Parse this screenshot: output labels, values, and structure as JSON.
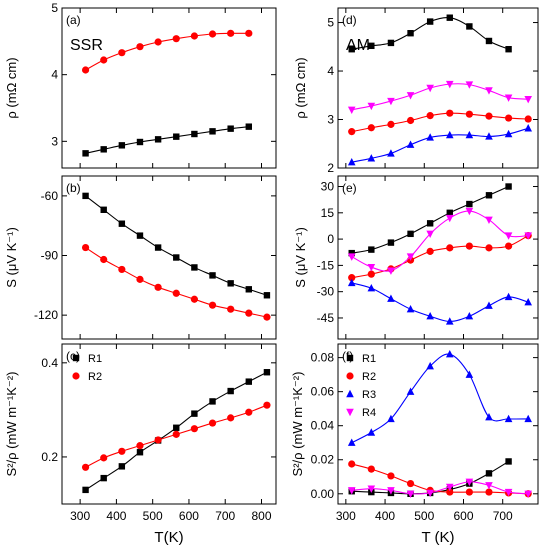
{
  "chart_data": [
    {
      "id": "a",
      "panel_label": "(a)",
      "tag": "SSR",
      "type": "line",
      "ylabel": "ρ (mΩ cm)",
      "xlim": [
        250,
        840
      ],
      "ylim": [
        2.6,
        5.0
      ],
      "yticks": [
        3,
        4,
        5
      ],
      "yticklabels": [
        "3",
        "4",
        "5"
      ],
      "series": [
        {
          "name": "R1",
          "color": "#000000",
          "marker": "square",
          "x": [
            315,
            365,
            415,
            465,
            515,
            565,
            615,
            665,
            715,
            765
          ],
          "y": [
            2.82,
            2.88,
            2.94,
            2.99,
            3.03,
            3.07,
            3.11,
            3.15,
            3.19,
            3.22
          ]
        },
        {
          "name": "R2",
          "color": "#ff0000",
          "marker": "circle",
          "x": [
            315,
            365,
            415,
            465,
            515,
            565,
            615,
            665,
            715,
            765
          ],
          "y": [
            4.07,
            4.22,
            4.33,
            4.42,
            4.49,
            4.54,
            4.58,
            4.61,
            4.62,
            4.62
          ]
        }
      ]
    },
    {
      "id": "b",
      "panel_label": "(b)",
      "type": "line",
      "ylabel": "S (μV K⁻¹)",
      "xlim": [
        250,
        840
      ],
      "ylim": [
        -132,
        -50
      ],
      "yticks": [
        -60,
        -90,
        -120
      ],
      "yticklabels": [
        "-60",
        "-90",
        "-120"
      ],
      "series": [
        {
          "name": "R1",
          "color": "#000000",
          "marker": "square",
          "x": [
            315,
            365,
            415,
            465,
            515,
            565,
            615,
            665,
            715,
            765,
            815
          ],
          "y": [
            -60,
            -67,
            -74,
            -80,
            -86,
            -91,
            -96,
            -100,
            -104,
            -107,
            -110
          ]
        },
        {
          "name": "R2",
          "color": "#ff0000",
          "marker": "circle",
          "x": [
            315,
            365,
            415,
            465,
            515,
            565,
            615,
            665,
            715,
            765,
            815
          ],
          "y": [
            -86,
            -92,
            -97,
            -102,
            -106,
            -109,
            -112,
            -115,
            -117,
            -119,
            -121
          ]
        }
      ]
    },
    {
      "id": "c",
      "panel_label": "(c)",
      "type": "line",
      "ylabel": "S²/ρ (mW m⁻¹K⁻²)",
      "xlabel": "T(K)",
      "xlim": [
        250,
        840
      ],
      "ylim": [
        0.1,
        0.44
      ],
      "xticks": [
        300,
        400,
        500,
        600,
        700,
        800
      ],
      "xticklabels": [
        "300",
        "400",
        "500",
        "600",
        "700",
        "800"
      ],
      "yticks": [
        0.2,
        0.4
      ],
      "yticklabels": [
        "0.2",
        "0.4"
      ],
      "legend_position": "top-left",
      "series": [
        {
          "name": "R1",
          "color": "#000000",
          "marker": "square",
          "x": [
            315,
            365,
            415,
            465,
            515,
            565,
            615,
            665,
            715,
            765,
            815
          ],
          "y": [
            0.13,
            0.155,
            0.18,
            0.21,
            0.235,
            0.262,
            0.292,
            0.318,
            0.34,
            0.36,
            0.38
          ]
        },
        {
          "name": "R2",
          "color": "#ff0000",
          "marker": "circle",
          "x": [
            315,
            365,
            415,
            465,
            515,
            565,
            615,
            665,
            715,
            765,
            815
          ],
          "y": [
            0.178,
            0.198,
            0.212,
            0.224,
            0.236,
            0.248,
            0.26,
            0.272,
            0.283,
            0.295,
            0.31
          ]
        }
      ]
    },
    {
      "id": "d",
      "panel_label": "(d)",
      "tag": "AM",
      "type": "line",
      "ylabel": "ρ (mΩ cm)",
      "xlim": [
        280,
        790
      ],
      "ylim": [
        2.0,
        5.3
      ],
      "yticks": [
        2,
        3,
        4,
        5
      ],
      "yticklabels": [
        "2",
        "3",
        "4",
        "5"
      ],
      "series": [
        {
          "name": "R1",
          "color": "#000000",
          "marker": "square",
          "x": [
            315,
            365,
            415,
            465,
            515,
            565,
            615,
            665,
            715
          ],
          "y": [
            4.45,
            4.52,
            4.58,
            4.78,
            5.02,
            5.1,
            4.92,
            4.62,
            4.45
          ]
        },
        {
          "name": "R2",
          "color": "#ff0000",
          "marker": "circle",
          "x": [
            315,
            365,
            415,
            465,
            515,
            565,
            615,
            665,
            715,
            765
          ],
          "y": [
            2.75,
            2.83,
            2.9,
            2.98,
            3.08,
            3.13,
            3.11,
            3.07,
            3.03,
            3.01
          ]
        },
        {
          "name": "R3",
          "color": "#0000ff",
          "marker": "triangle-up",
          "x": [
            315,
            365,
            415,
            465,
            515,
            565,
            615,
            665,
            715,
            765
          ],
          "y": [
            2.12,
            2.2,
            2.3,
            2.48,
            2.63,
            2.68,
            2.68,
            2.65,
            2.7,
            2.82
          ]
        },
        {
          "name": "R4",
          "color": "#ff00ff",
          "marker": "triangle-down",
          "x": [
            315,
            365,
            415,
            465,
            515,
            565,
            615,
            665,
            715,
            765
          ],
          "y": [
            3.2,
            3.28,
            3.38,
            3.5,
            3.65,
            3.73,
            3.72,
            3.6,
            3.45,
            3.42
          ]
        }
      ]
    },
    {
      "id": "e",
      "panel_label": "(e)",
      "type": "line",
      "ylabel": "S (μV K⁻¹)",
      "xlim": [
        280,
        790
      ],
      "ylim": [
        -57,
        36
      ],
      "yticks": [
        30,
        15,
        0,
        -15,
        -30,
        -45
      ],
      "yticklabels": [
        "30",
        "15",
        "0",
        "-15",
        "-30",
        "-45"
      ],
      "series": [
        {
          "name": "R1",
          "color": "#000000",
          "marker": "square",
          "x": [
            315,
            365,
            415,
            465,
            515,
            565,
            615,
            665,
            715
          ],
          "y": [
            -8,
            -6,
            -2,
            3,
            9,
            15,
            20,
            25,
            30
          ]
        },
        {
          "name": "R2",
          "color": "#ff0000",
          "marker": "circle",
          "x": [
            315,
            365,
            415,
            465,
            515,
            565,
            615,
            665,
            715,
            765
          ],
          "y": [
            -22,
            -20,
            -17,
            -12,
            -7,
            -5,
            -4,
            -5,
            -4,
            2
          ]
        },
        {
          "name": "R3",
          "color": "#0000ff",
          "marker": "triangle-up",
          "x": [
            315,
            365,
            415,
            465,
            515,
            565,
            615,
            665,
            715,
            765
          ],
          "y": [
            -25,
            -28,
            -34,
            -40,
            -44,
            -47,
            -44,
            -38,
            -33,
            -36
          ]
        },
        {
          "name": "R4",
          "color": "#ff00ff",
          "marker": "triangle-down",
          "x": [
            315,
            365,
            415,
            465,
            515,
            565,
            615,
            665,
            715,
            765
          ],
          "y": [
            -10,
            -16,
            -18,
            -10,
            3,
            12,
            16,
            11,
            2,
            2
          ]
        }
      ]
    },
    {
      "id": "f",
      "panel_label": "(f)",
      "type": "line",
      "ylabel": "S²/ρ (mW m⁻¹K⁻²)",
      "xlabel": "T (K)",
      "xlim": [
        280,
        790
      ],
      "ylim": [
        -0.006,
        0.088
      ],
      "xticks": [
        300,
        400,
        500,
        600,
        700
      ],
      "xticklabels": [
        "300",
        "400",
        "500",
        "600",
        "700"
      ],
      "yticks": [
        0.0,
        0.02,
        0.04,
        0.06,
        0.08
      ],
      "yticklabels": [
        "0.00",
        "0.02",
        "0.04",
        "0.06",
        "0.08"
      ],
      "legend_position": "top-left",
      "series": [
        {
          "name": "R1",
          "color": "#000000",
          "marker": "square",
          "x": [
            315,
            365,
            415,
            465,
            515,
            565,
            615,
            665,
            715
          ],
          "y": [
            0.0015,
            0.001,
            0.0005,
            0.0,
            0.0005,
            0.0025,
            0.006,
            0.012,
            0.019
          ]
        },
        {
          "name": "R2",
          "color": "#ff0000",
          "marker": "circle",
          "x": [
            315,
            365,
            415,
            465,
            515,
            565,
            615,
            665,
            715,
            765
          ],
          "y": [
            0.0175,
            0.0145,
            0.0105,
            0.006,
            0.002,
            0.001,
            0.001,
            0.001,
            0.0005,
            0.0
          ]
        },
        {
          "name": "R3",
          "color": "#0000ff",
          "marker": "triangle-up",
          "x": [
            315,
            365,
            415,
            465,
            515,
            565,
            615,
            665,
            715,
            765
          ],
          "y": [
            0.03,
            0.036,
            0.044,
            0.06,
            0.075,
            0.082,
            0.07,
            0.045,
            0.044,
            0.044
          ]
        },
        {
          "name": "R4",
          "color": "#ff00ff",
          "marker": "triangle-down",
          "x": [
            315,
            365,
            415,
            465,
            515,
            565,
            615,
            665,
            715,
            765
          ],
          "y": [
            0.002,
            0.003,
            0.002,
            0.0,
            0.0005,
            0.004,
            0.007,
            0.005,
            0.001,
            0.0
          ]
        }
      ]
    }
  ]
}
